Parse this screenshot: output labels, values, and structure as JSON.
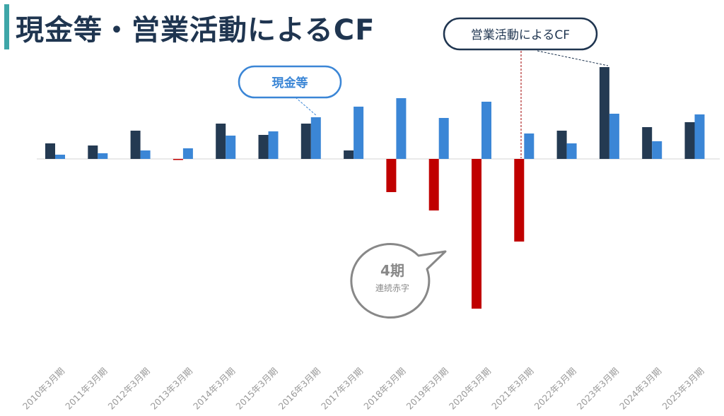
{
  "title": "現金等・営業活動によるCF",
  "colors": {
    "title_accent": "#3ea6a8",
    "title_text": "#1f3550",
    "ocf_positive": "#243a52",
    "ocf_negative": "#c00000",
    "cash": "#3b86d6",
    "callout_dark": "#1f3550",
    "callout_blue": "#3b86d6",
    "callout_gray": "#888888"
  },
  "callouts": {
    "ocf": "営業活動によるCF",
    "cash": "現金等",
    "deficit_main": "4期",
    "deficit_sub": "連続赤字"
  },
  "chart_data": {
    "type": "bar",
    "categories": [
      "2010年3月期",
      "2011年3月期",
      "2012年3月期",
      "2013年3月期",
      "2014年3月期",
      "2015年3月期",
      "2016年3月期",
      "2017年3月期",
      "2018年3月期",
      "2019年3月期",
      "2020年3月期",
      "2021年3月期",
      "2022年3月期",
      "2023年3月期",
      "2024年3月期",
      "2025年3月期"
    ],
    "series": [
      {
        "name": "営業活動によるCF",
        "values": [
          22,
          19,
          40,
          -1,
          50,
          34,
          50,
          12,
          -47,
          -73,
          -212,
          -117,
          40,
          130,
          45,
          52
        ]
      },
      {
        "name": "現金等",
        "values": [
          6,
          8,
          12,
          15,
          33,
          39,
          59,
          74,
          86,
          58,
          81,
          36,
          22,
          64,
          25,
          63
        ]
      }
    ],
    "ylim": [
      -340,
      140
    ],
    "grid": false,
    "legend": "callouts"
  }
}
